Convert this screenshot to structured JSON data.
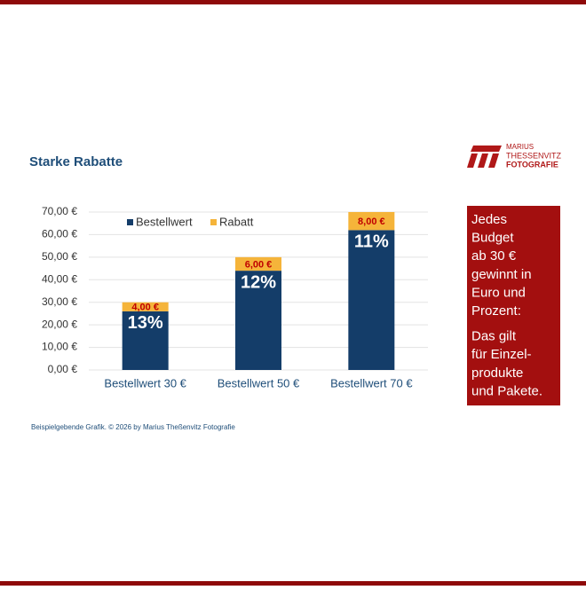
{
  "chart_data": {
    "type": "stacked-bar",
    "title": "Starke Rabatte",
    "categories": [
      "Bestellwert 30 €",
      "Bestellwert 50 €",
      "Bestellwert 70 €"
    ],
    "series": [
      {
        "name": "Bestellwert",
        "color": "#143d69",
        "values": [
          26,
          44,
          62
        ],
        "value_labels": [
          "13%",
          "12%",
          "11%"
        ]
      },
      {
        "name": "Rabatt",
        "color": "#f5b43a",
        "values": [
          4,
          6,
          8
        ],
        "value_labels": [
          "4,00 €",
          "6,00 €",
          "8,00 €"
        ]
      }
    ],
    "ylim": [
      0,
      70
    ],
    "yticks": [
      {
        "value": 0,
        "label": "0,00 €"
      },
      {
        "value": 10,
        "label": "10,00 €"
      },
      {
        "value": 20,
        "label": "20,00 €"
      },
      {
        "value": 30,
        "label": "30,00 €"
      },
      {
        "value": 40,
        "label": "40,00 €"
      },
      {
        "value": 50,
        "label": "50,00 €"
      },
      {
        "value": 60,
        "label": "60,00 €"
      },
      {
        "value": 70,
        "label": "70,00 €"
      }
    ],
    "grid": true,
    "footnote": "Beispielgebende Grafik. © 2026 by Marius Theßenvitz Fotografie"
  },
  "logo": {
    "lines": [
      "MARIUS",
      "THESSENVITZ",
      "FOTOGRAFIE"
    ]
  },
  "sidebar": {
    "paragraphs": [
      [
        "Jedes",
        "Budget",
        "ab 30 €",
        "gewinnt in",
        "Euro und",
        "Prozent:"
      ],
      [
        "Das gilt",
        "für Einzel-",
        "produkte",
        "und Pakete."
      ]
    ]
  }
}
